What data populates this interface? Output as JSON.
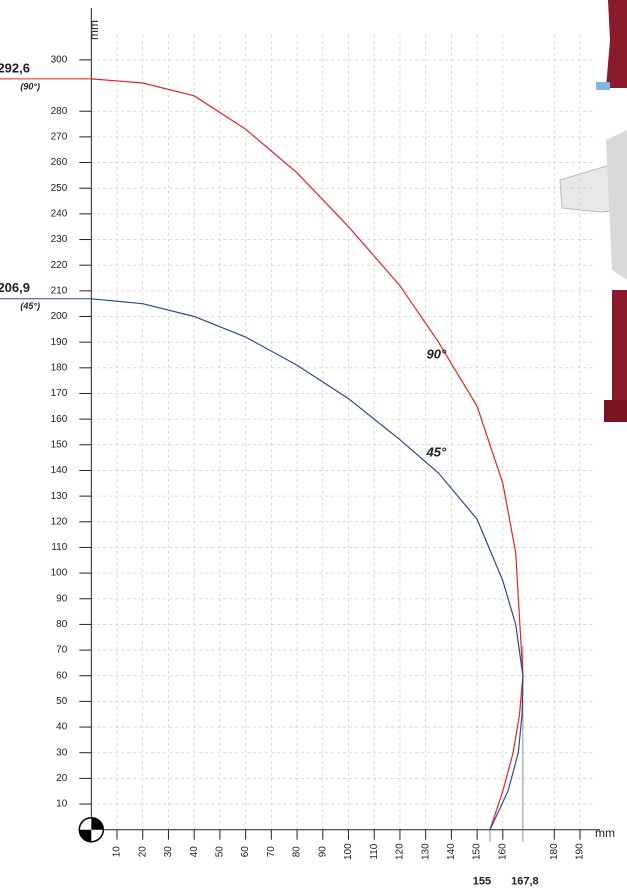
{
  "chart_data": {
    "type": "line",
    "x_label": "mm",
    "y_label": "mm",
    "xlim": [
      0,
      195
    ],
    "ylim": [
      0,
      310
    ],
    "xticks": [
      10,
      20,
      30,
      40,
      50,
      60,
      70,
      80,
      90,
      100,
      110,
      120,
      130,
      140,
      150,
      160,
      180,
      190
    ],
    "yticks": [
      10,
      20,
      30,
      40,
      50,
      60,
      70,
      80,
      90,
      100,
      110,
      120,
      130,
      140,
      150,
      160,
      170,
      180,
      190,
      200,
      210,
      220,
      230,
      240,
      250,
      260,
      270,
      280,
      300
    ],
    "grid": true,
    "series": [
      {
        "name": "90°",
        "color": "#e52421",
        "x": [
          0,
          20,
          40,
          60,
          80,
          100,
          120,
          135,
          150,
          160,
          165,
          167.8,
          166.5,
          164,
          160,
          155
        ],
        "values": [
          292.6,
          291,
          286,
          273,
          256,
          235,
          212,
          190,
          165,
          135,
          108,
          60,
          45,
          30,
          15,
          0
        ]
      },
      {
        "name": "45°",
        "color": "#2b4a9b",
        "x": [
          0,
          20,
          40,
          60,
          80,
          100,
          120,
          135,
          150,
          160,
          165,
          167.8,
          167.5,
          166,
          162,
          155
        ],
        "values": [
          206.9,
          205,
          200,
          192,
          181,
          168,
          152,
          139,
          121,
          97,
          80,
          60,
          45,
          30,
          15,
          0
        ]
      }
    ],
    "y_markers": [
      {
        "value": 292.6,
        "label": "292,6",
        "note": "(90°)",
        "color": "#e52421"
      },
      {
        "value": 206.9,
        "label": "206,9",
        "note": "(45°)",
        "color": "#2b4a9b"
      }
    ],
    "x_markers": [
      {
        "value": 155,
        "label": "155"
      },
      {
        "value": 167.8,
        "label": "167,8"
      }
    ]
  }
}
